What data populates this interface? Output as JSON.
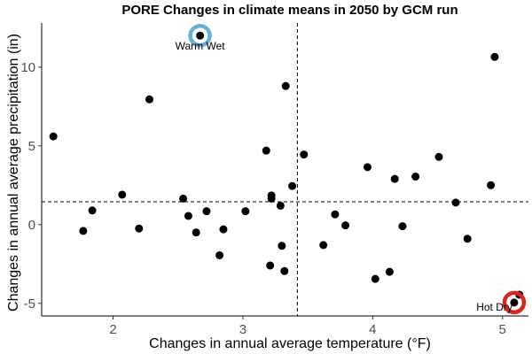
{
  "chart_data": {
    "type": "scatter",
    "title": "PORE Changes in climate means in 2050 by GCM run",
    "xlabel": "Changes in annual average temperature (°F)",
    "ylabel": "Changes in annual average precipitation (in)",
    "xlim": [
      1.45,
      5.2
    ],
    "ylim": [
      -5.8,
      12.8
    ],
    "xticks": [
      "2",
      "3",
      "4",
      "5"
    ],
    "xtick_values": [
      2,
      3,
      4,
      5
    ],
    "yticks": [
      "-5",
      "0",
      "5",
      "10"
    ],
    "ytick_values": [
      -5,
      0,
      5,
      10
    ],
    "grid": false,
    "reference_lines": {
      "x": 3.42,
      "y": 1.45
    },
    "points": [
      {
        "x": 1.54,
        "y": 5.6
      },
      {
        "x": 1.77,
        "y": -0.4
      },
      {
        "x": 1.84,
        "y": 0.9
      },
      {
        "x": 2.07,
        "y": 1.9
      },
      {
        "x": 2.2,
        "y": -0.25
      },
      {
        "x": 2.28,
        "y": 7.95
      },
      {
        "x": 2.54,
        "y": 1.65
      },
      {
        "x": 2.58,
        "y": 0.55
      },
      {
        "x": 2.64,
        "y": -0.5
      },
      {
        "x": 2.72,
        "y": 0.85
      },
      {
        "x": 2.82,
        "y": -1.95
      },
      {
        "x": 2.85,
        "y": -0.3
      },
      {
        "x": 3.02,
        "y": 0.85
      },
      {
        "x": 3.18,
        "y": 4.7
      },
      {
        "x": 3.21,
        "y": -2.6
      },
      {
        "x": 3.22,
        "y": 1.85
      },
      {
        "x": 3.22,
        "y": 1.65
      },
      {
        "x": 3.29,
        "y": 1.2
      },
      {
        "x": 3.3,
        "y": -1.35
      },
      {
        "x": 3.32,
        "y": -2.95
      },
      {
        "x": 3.33,
        "y": 8.8
      },
      {
        "x": 3.38,
        "y": 2.45
      },
      {
        "x": 3.47,
        "y": 4.45
      },
      {
        "x": 3.62,
        "y": -1.3
      },
      {
        "x": 3.71,
        "y": 0.65
      },
      {
        "x": 3.79,
        "y": -0.05
      },
      {
        "x": 3.96,
        "y": 3.65
      },
      {
        "x": 4.02,
        "y": -3.45
      },
      {
        "x": 4.13,
        "y": -3.0
      },
      {
        "x": 4.17,
        "y": 2.9
      },
      {
        "x": 4.23,
        "y": -0.1
      },
      {
        "x": 4.33,
        "y": 3.05
      },
      {
        "x": 4.51,
        "y": 4.3
      },
      {
        "x": 4.64,
        "y": 1.4
      },
      {
        "x": 4.73,
        "y": -0.9
      },
      {
        "x": 4.91,
        "y": 2.5
      },
      {
        "x": 4.94,
        "y": 10.65
      },
      {
        "x": 5.13,
        "y": -4.45
      }
    ],
    "highlights": [
      {
        "label": "Warm Wet",
        "x": 2.67,
        "y": 12.0,
        "color": "#6baed6"
      },
      {
        "label": "Hot Dry",
        "x": 5.09,
        "y": -4.95,
        "color": "#d7261e"
      }
    ]
  }
}
